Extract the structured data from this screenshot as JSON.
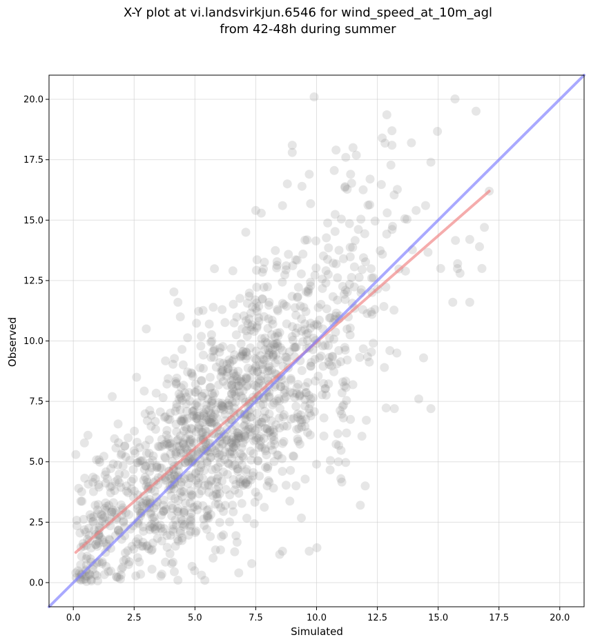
{
  "chart_data": {
    "type": "scatter",
    "title_lines": [
      "X-Y plot at vi.landsvirkjun.6546 for wind_speed_at_10m_agl",
      "from 42-48h during summer"
    ],
    "xlabel": "Simulated",
    "ylabel": "Observed",
    "xlim": [
      -1.0,
      21.0
    ],
    "ylim": [
      -1.0,
      21.0
    ],
    "xticks": [
      0.0,
      2.5,
      5.0,
      7.5,
      10.0,
      12.5,
      15.0,
      17.5,
      20.0
    ],
    "yticks": [
      0.0,
      2.5,
      5.0,
      7.5,
      10.0,
      12.5,
      15.0,
      17.5,
      20.0
    ],
    "tick_labels": [
      "0.0",
      "2.5",
      "5.0",
      "7.5",
      "10.0",
      "12.5",
      "15.0",
      "17.5",
      "20.0"
    ],
    "grid": true,
    "point_color": "#808080",
    "point_count": 1500,
    "point_distribution": {
      "x_mean": 6.0,
      "x_sd": 3.3,
      "x_min": 0.1,
      "x_max": 17.1,
      "y_slope": 0.88,
      "y_intercept": 1.1,
      "y_noise_sd": 2.2,
      "y_min": 0.0,
      "y_max": 20.1
    },
    "points": [
      {
        "x": 9.9,
        "y": 20.1
      },
      {
        "x": 9.0,
        "y": 18.1
      },
      {
        "x": 9.0,
        "y": 17.8
      },
      {
        "x": 12.7,
        "y": 18.4
      },
      {
        "x": 13.1,
        "y": 18.7
      },
      {
        "x": 13.1,
        "y": 18.1
      },
      {
        "x": 13.9,
        "y": 18.2
      },
      {
        "x": 10.8,
        "y": 17.9
      },
      {
        "x": 11.5,
        "y": 18.0
      },
      {
        "x": 14.7,
        "y": 17.4
      },
      {
        "x": 17.1,
        "y": 16.2
      },
      {
        "x": 16.9,
        "y": 14.7
      },
      {
        "x": 16.7,
        "y": 13.9
      },
      {
        "x": 16.3,
        "y": 14.2
      },
      {
        "x": 16.3,
        "y": 11.6
      },
      {
        "x": 16.8,
        "y": 13.0
      },
      {
        "x": 15.8,
        "y": 13.2
      },
      {
        "x": 15.9,
        "y": 12.8
      },
      {
        "x": 15.6,
        "y": 11.6
      },
      {
        "x": 15.1,
        "y": 13.0
      },
      {
        "x": 14.7,
        "y": 7.2
      },
      {
        "x": 14.2,
        "y": 7.6
      },
      {
        "x": 14.4,
        "y": 9.3
      },
      {
        "x": 13.2,
        "y": 7.2
      },
      {
        "x": 13.3,
        "y": 9.5
      },
      {
        "x": 12.0,
        "y": 4.0
      },
      {
        "x": 11.8,
        "y": 3.2
      },
      {
        "x": 11.0,
        "y": 4.3
      },
      {
        "x": 10.9,
        "y": 5.0
      },
      {
        "x": 10.0,
        "y": 4.9
      },
      {
        "x": 9.7,
        "y": 1.3
      },
      {
        "x": 8.6,
        "y": 1.3
      },
      {
        "x": 6.8,
        "y": 0.4
      },
      {
        "x": 2.6,
        "y": 8.5
      },
      {
        "x": 3.0,
        "y": 10.5
      },
      {
        "x": 4.3,
        "y": 11.6
      },
      {
        "x": 4.4,
        "y": 11.0
      },
      {
        "x": 1.6,
        "y": 7.7
      },
      {
        "x": 0.6,
        "y": 6.1
      },
      {
        "x": 0.1,
        "y": 5.3
      },
      {
        "x": 4.3,
        "y": 0.1
      },
      {
        "x": 7.5,
        "y": 15.4
      },
      {
        "x": 8.6,
        "y": 15.6
      },
      {
        "x": 8.8,
        "y": 16.5
      },
      {
        "x": 9.4,
        "y": 16.4
      },
      {
        "x": 9.7,
        "y": 16.9
      },
      {
        "x": 11.2,
        "y": 17.6
      },
      {
        "x": 11.4,
        "y": 16.9
      },
      {
        "x": 12.2,
        "y": 16.7
      }
    ],
    "series": [
      {
        "name": "",
        "type": "line",
        "color": "#f08080",
        "x": [
          0.1,
          17.1
        ],
        "y": [
          1.25,
          16.2
        ]
      },
      {
        "name": "",
        "type": "line",
        "color": "#7b7bff",
        "x": [
          -1.0,
          21.0
        ],
        "y": [
          -1.0,
          21.0
        ]
      }
    ]
  }
}
